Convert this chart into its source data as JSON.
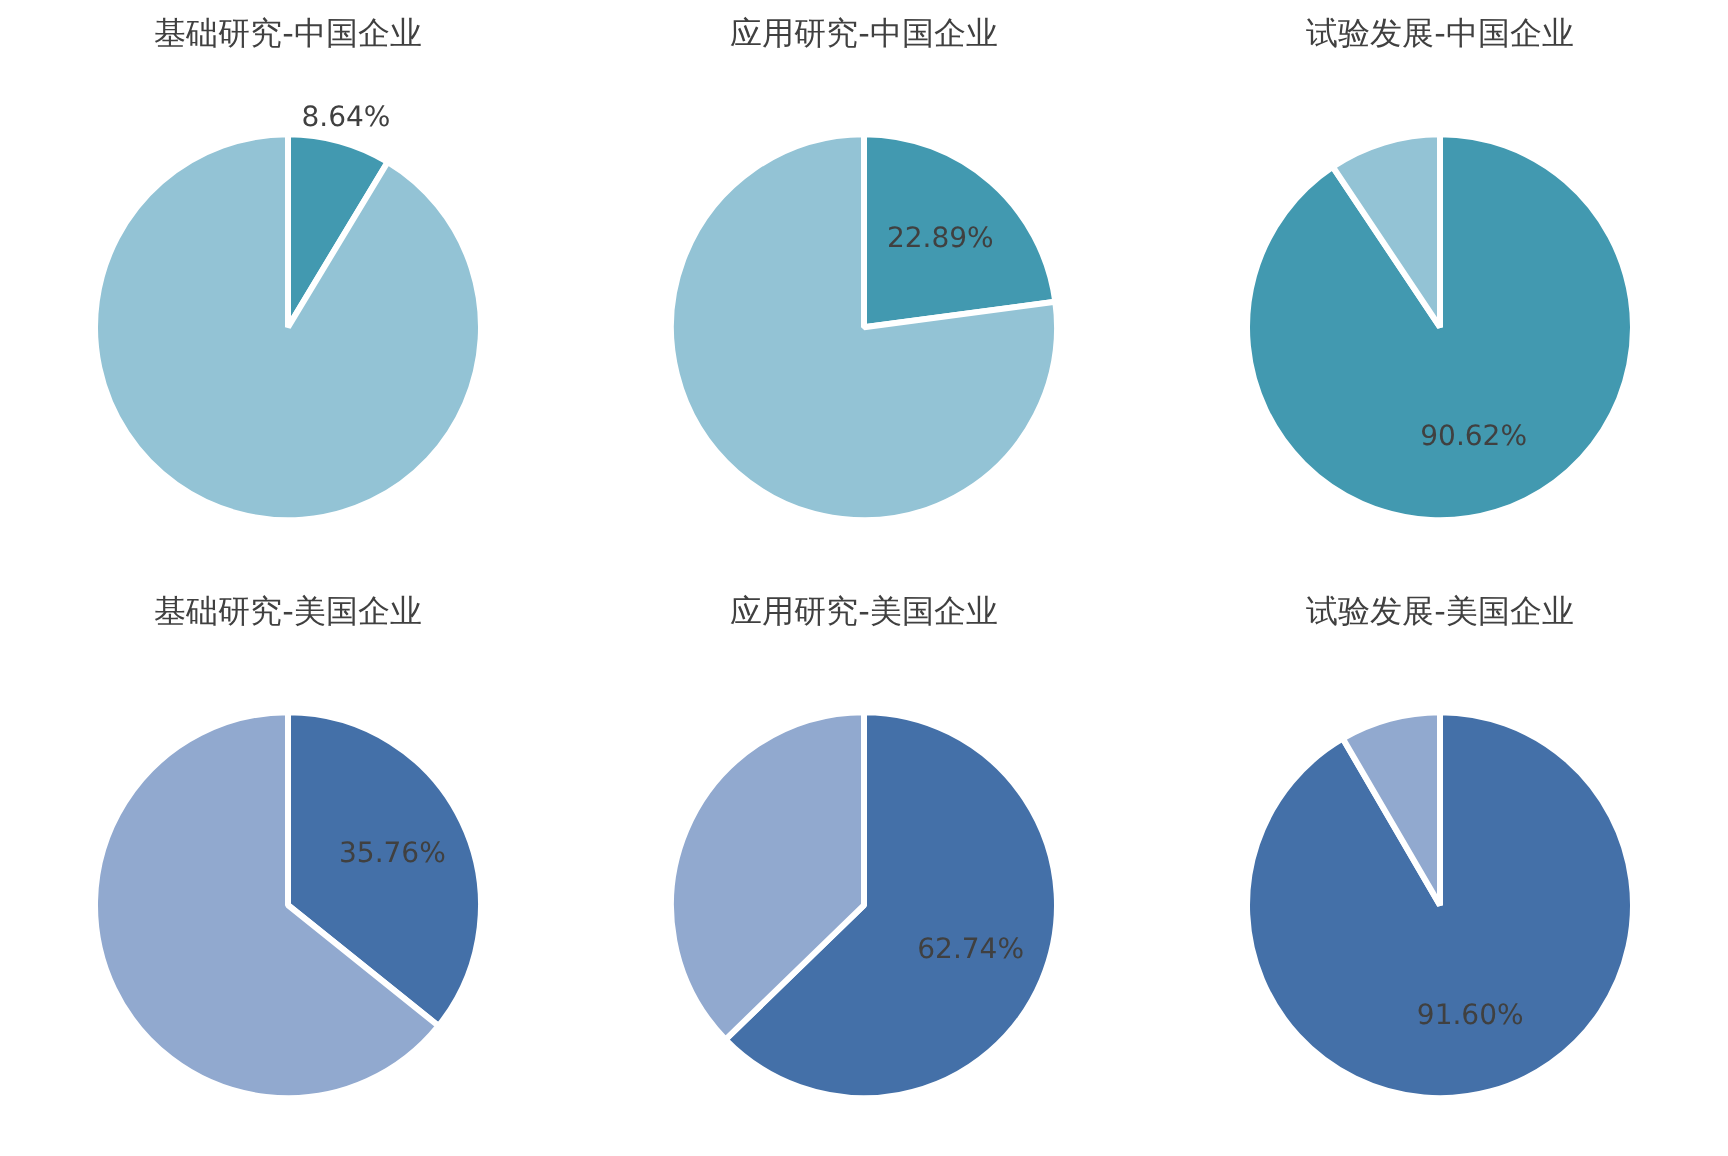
{
  "chart_data": [
    {
      "type": "pie",
      "title": "基础研究-中国企业",
      "categories": [
        null,
        null
      ],
      "values": [
        8.64,
        91.36
      ],
      "colors": [
        "#4299b0",
        "#93c3d5"
      ],
      "value_labels": [
        "8.64%",
        null
      ],
      "legend": false
    },
    {
      "type": "pie",
      "title": "应用研究-中国企业",
      "categories": [
        null,
        null
      ],
      "values": [
        22.89,
        77.11
      ],
      "colors": [
        "#4299b0",
        "#93c3d5"
      ],
      "value_labels": [
        "22.89%",
        null
      ],
      "legend": false
    },
    {
      "type": "pie",
      "title": "试验发展-中国企业",
      "categories": [
        null,
        null
      ],
      "values": [
        90.62,
        9.38
      ],
      "colors": [
        "#4299b0",
        "#93c3d5"
      ],
      "value_labels": [
        "90.62%",
        null
      ],
      "legend": false
    },
    {
      "type": "pie",
      "title": "基础研究-美国企业",
      "categories": [
        null,
        null
      ],
      "values": [
        35.76,
        64.24
      ],
      "colors": [
        "#4470a8",
        "#91a9cf"
      ],
      "value_labels": [
        "35.76%",
        null
      ],
      "legend": false
    },
    {
      "type": "pie",
      "title": "应用研究-美国企业",
      "categories": [
        null,
        null
      ],
      "values": [
        62.74,
        37.26
      ],
      "colors": [
        "#4470a8",
        "#91a9cf"
      ],
      "value_labels": [
        "62.74%",
        null
      ],
      "legend": false
    },
    {
      "type": "pie",
      "title": "试验发展-美国企业",
      "categories": [
        null,
        null
      ],
      "values": [
        91.6,
        8.4
      ],
      "colors": [
        "#4470a8",
        "#91a9cf"
      ],
      "value_labels": [
        "91.60%",
        null
      ],
      "legend": false
    }
  ]
}
